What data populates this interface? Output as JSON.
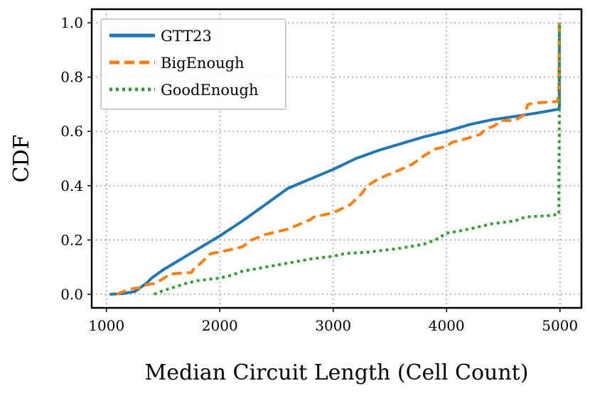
{
  "chart_data": {
    "type": "line",
    "title": "",
    "xlabel": "Median Circuit Length (Cell Count)",
    "ylabel": "CDF",
    "xlim": [
      870,
      5190
    ],
    "ylim": [
      -0.05,
      1.05
    ],
    "xticks": [
      1000,
      2000,
      3000,
      4000,
      5000
    ],
    "xtick_labels": [
      "1000",
      "2000",
      "3000",
      "4000",
      "5000"
    ],
    "yticks": [
      0.0,
      0.2,
      0.4,
      0.6,
      0.8,
      1.0
    ],
    "ytick_labels": [
      "0.0",
      "0.2",
      "0.4",
      "0.6",
      "0.8",
      "1.0"
    ],
    "grid": true,
    "legend_position": "top-left",
    "series": [
      {
        "name": "GTT23",
        "color": "#1f77b4",
        "style": "solid",
        "points": [
          [
            1030,
            0.0
          ],
          [
            1150,
            0.003
          ],
          [
            1250,
            0.01
          ],
          [
            1350,
            0.04
          ],
          [
            1400,
            0.06
          ],
          [
            1500,
            0.09
          ],
          [
            1600,
            0.115
          ],
          [
            1800,
            0.165
          ],
          [
            2000,
            0.215
          ],
          [
            2200,
            0.27
          ],
          [
            2400,
            0.33
          ],
          [
            2600,
            0.39
          ],
          [
            2800,
            0.425
          ],
          [
            3000,
            0.46
          ],
          [
            3200,
            0.5
          ],
          [
            3400,
            0.53
          ],
          [
            3600,
            0.555
          ],
          [
            3800,
            0.58
          ],
          [
            4000,
            0.6
          ],
          [
            4200,
            0.625
          ],
          [
            4400,
            0.643
          ],
          [
            4600,
            0.655
          ],
          [
            4800,
            0.668
          ],
          [
            4990,
            0.682
          ],
          [
            4995,
            0.69
          ],
          [
            4995,
            1.0
          ]
        ]
      },
      {
        "name": "BigEnough",
        "color": "#ff7f0e",
        "style": "dashed",
        "points": [
          [
            1090,
            0.0
          ],
          [
            1150,
            0.01
          ],
          [
            1180,
            0.015
          ],
          [
            1220,
            0.02
          ],
          [
            1300,
            0.025
          ],
          [
            1350,
            0.035
          ],
          [
            1420,
            0.04
          ],
          [
            1470,
            0.05
          ],
          [
            1510,
            0.06
          ],
          [
            1560,
            0.075
          ],
          [
            1750,
            0.08
          ],
          [
            1780,
            0.1
          ],
          [
            1820,
            0.11
          ],
          [
            1870,
            0.13
          ],
          [
            1920,
            0.15
          ],
          [
            2050,
            0.16
          ],
          [
            2200,
            0.175
          ],
          [
            2280,
            0.2
          ],
          [
            2400,
            0.22
          ],
          [
            2600,
            0.24
          ],
          [
            2800,
            0.275
          ],
          [
            2830,
            0.285
          ],
          [
            3000,
            0.3
          ],
          [
            3050,
            0.31
          ],
          [
            3150,
            0.33
          ],
          [
            3250,
            0.37
          ],
          [
            3300,
            0.4
          ],
          [
            3380,
            0.42
          ],
          [
            3480,
            0.44
          ],
          [
            3600,
            0.46
          ],
          [
            3700,
            0.48
          ],
          [
            3800,
            0.51
          ],
          [
            3900,
            0.535
          ],
          [
            4000,
            0.545
          ],
          [
            4050,
            0.56
          ],
          [
            4150,
            0.57
          ],
          [
            4300,
            0.59
          ],
          [
            4350,
            0.61
          ],
          [
            4420,
            0.62
          ],
          [
            4480,
            0.64
          ],
          [
            4600,
            0.64
          ],
          [
            4680,
            0.66
          ],
          [
            4700,
            0.68
          ],
          [
            4720,
            0.7
          ],
          [
            4800,
            0.705
          ],
          [
            4980,
            0.71
          ],
          [
            4990,
            0.75
          ],
          [
            4995,
            1.0
          ]
        ]
      },
      {
        "name": "GoodEnough",
        "color": "#2ca02c",
        "style": "dotted",
        "points": [
          [
            1420,
            0.0
          ],
          [
            1480,
            0.01
          ],
          [
            1550,
            0.02
          ],
          [
            1700,
            0.04
          ],
          [
            1800,
            0.05
          ],
          [
            2000,
            0.06
          ],
          [
            2100,
            0.07
          ],
          [
            2200,
            0.085
          ],
          [
            2400,
            0.1
          ],
          [
            2600,
            0.115
          ],
          [
            2800,
            0.13
          ],
          [
            3000,
            0.14
          ],
          [
            3100,
            0.15
          ],
          [
            3300,
            0.155
          ],
          [
            3600,
            0.17
          ],
          [
            3800,
            0.185
          ],
          [
            3900,
            0.2
          ],
          [
            4000,
            0.225
          ],
          [
            4200,
            0.24
          ],
          [
            4400,
            0.26
          ],
          [
            4600,
            0.27
          ],
          [
            4700,
            0.285
          ],
          [
            4900,
            0.29
          ],
          [
            4990,
            0.295
          ],
          [
            4995,
            0.65
          ],
          [
            4995,
            1.0
          ]
        ]
      }
    ]
  }
}
